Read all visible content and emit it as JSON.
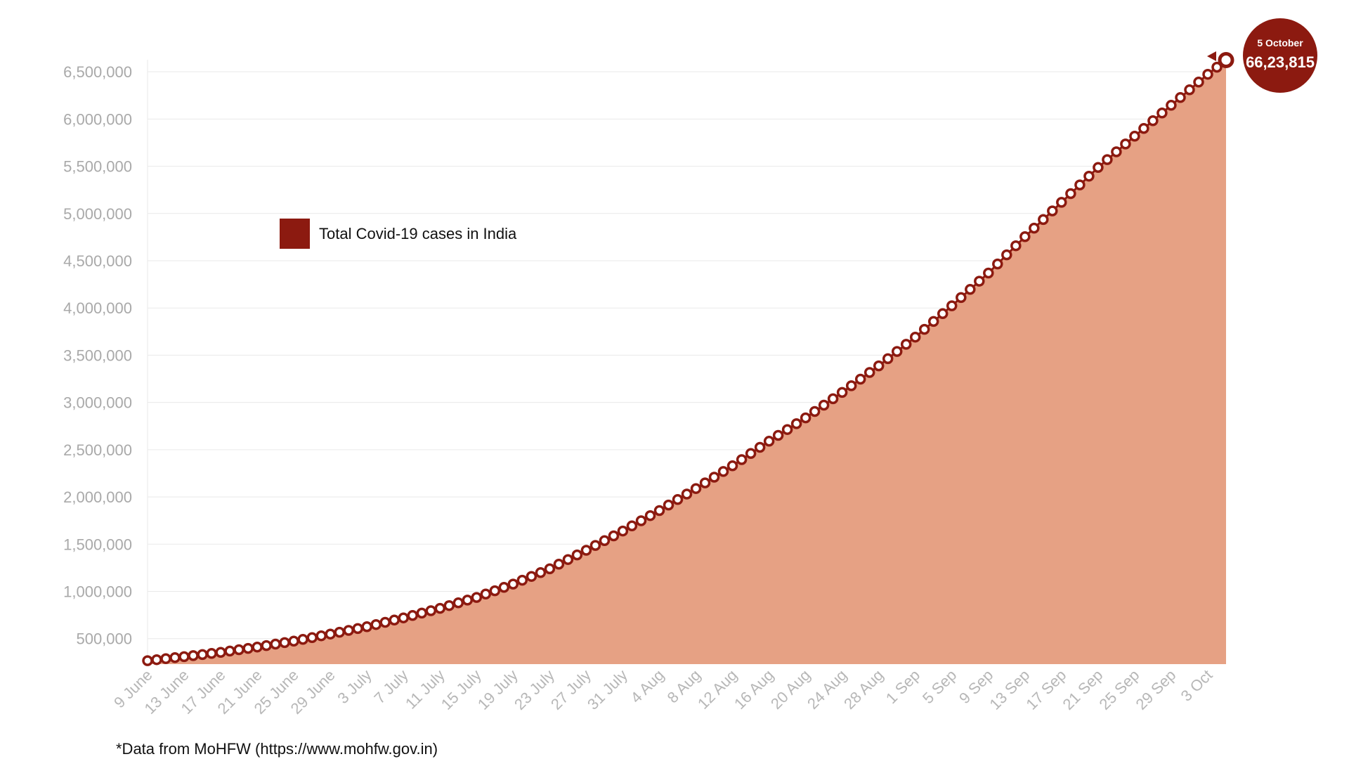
{
  "chart_data": {
    "type": "area",
    "series": [
      {
        "name": "Total Covid-19 cases in India",
        "color": "#8c1a10",
        "fill": "#e6a184",
        "points": [
          {
            "x": "2020-06-09",
            "y": 266598
          },
          {
            "x": "2020-06-13",
            "y": 308993
          },
          {
            "x": "2020-06-17",
            "y": 354065
          },
          {
            "x": "2020-06-21",
            "y": 410461
          },
          {
            "x": "2020-06-25",
            "y": 473105
          },
          {
            "x": "2020-06-29",
            "y": 548318
          },
          {
            "x": "2020-07-03",
            "y": 625544
          },
          {
            "x": "2020-07-07",
            "y": 719665
          },
          {
            "x": "2020-07-11",
            "y": 820916
          },
          {
            "x": "2020-07-15",
            "y": 936181
          },
          {
            "x": "2020-07-19",
            "y": 1077618
          },
          {
            "x": "2020-07-23",
            "y": 1238635
          },
          {
            "x": "2020-07-27",
            "y": 1435453
          },
          {
            "x": "2020-07-31",
            "y": 1638870
          },
          {
            "x": "2020-08-04",
            "y": 1855745
          },
          {
            "x": "2020-08-08",
            "y": 2088611
          },
          {
            "x": "2020-08-12",
            "y": 2329638
          },
          {
            "x": "2020-08-16",
            "y": 2589682
          },
          {
            "x": "2020-08-20",
            "y": 2836925
          },
          {
            "x": "2020-08-24",
            "y": 3106348
          },
          {
            "x": "2020-08-28",
            "y": 3387500
          },
          {
            "x": "2020-09-01",
            "y": 3691166
          },
          {
            "x": "2020-09-05",
            "y": 4023179
          },
          {
            "x": "2020-09-09",
            "y": 4370128
          },
          {
            "x": "2020-09-13",
            "y": 4754356
          },
          {
            "x": "2020-09-17",
            "y": 5118253
          },
          {
            "x": "2020-09-21",
            "y": 5487580
          },
          {
            "x": "2020-09-25",
            "y": 5818570
          },
          {
            "x": "2020-09-29",
            "y": 6145291
          },
          {
            "x": "2020-10-03",
            "y": 6473544
          },
          {
            "x": "2020-10-05",
            "y": 6623815
          }
        ]
      }
    ],
    "x_tick_labels": [
      "9 June",
      "13 June",
      "17 June",
      "21 June",
      "25 June",
      "29 June",
      "3 July",
      "7 July",
      "11 July",
      "15 July",
      "19 July",
      "23 July",
      "27 July",
      "31 July",
      "4 Aug",
      "8 Aug",
      "12 Aug",
      "16 Aug",
      "20 Aug",
      "24 Aug",
      "28 Aug",
      "1 Sep",
      "5 Sep",
      "9 Sep",
      "13 Sep",
      "17 Sep",
      "21 Sep",
      "25 Sep",
      "29 Sep",
      "3 Oct"
    ],
    "y_tick_labels": [
      "500,000",
      "1,000,000",
      "1,500,000",
      "2,000,000",
      "2,500,000",
      "3,000,000",
      "3,500,000",
      "4,000,000",
      "4,500,000",
      "5,000,000",
      "5,500,000",
      "6,000,000",
      "6,500,000"
    ],
    "y_ticks": [
      500000,
      1000000,
      1500000,
      2000000,
      2500000,
      3000000,
      3500000,
      4000000,
      4500000,
      5000000,
      5500000,
      6000000,
      6500000
    ],
    "xlim": [
      "2020-06-09",
      "2020-10-05"
    ],
    "ylim": [
      230000,
      6650000
    ],
    "grid": true,
    "legend": {
      "label": "Total Covid-19 cases in India",
      "color": "#8c1a10",
      "placement": "upper-left"
    },
    "callout": {
      "date": "5 October",
      "value": "66,23,815",
      "color": "#8c1a10"
    },
    "xlabel": "",
    "ylabel": "",
    "title": ""
  },
  "footnote": "*Data from MoHFW (https://www.mohfw.gov.in)"
}
